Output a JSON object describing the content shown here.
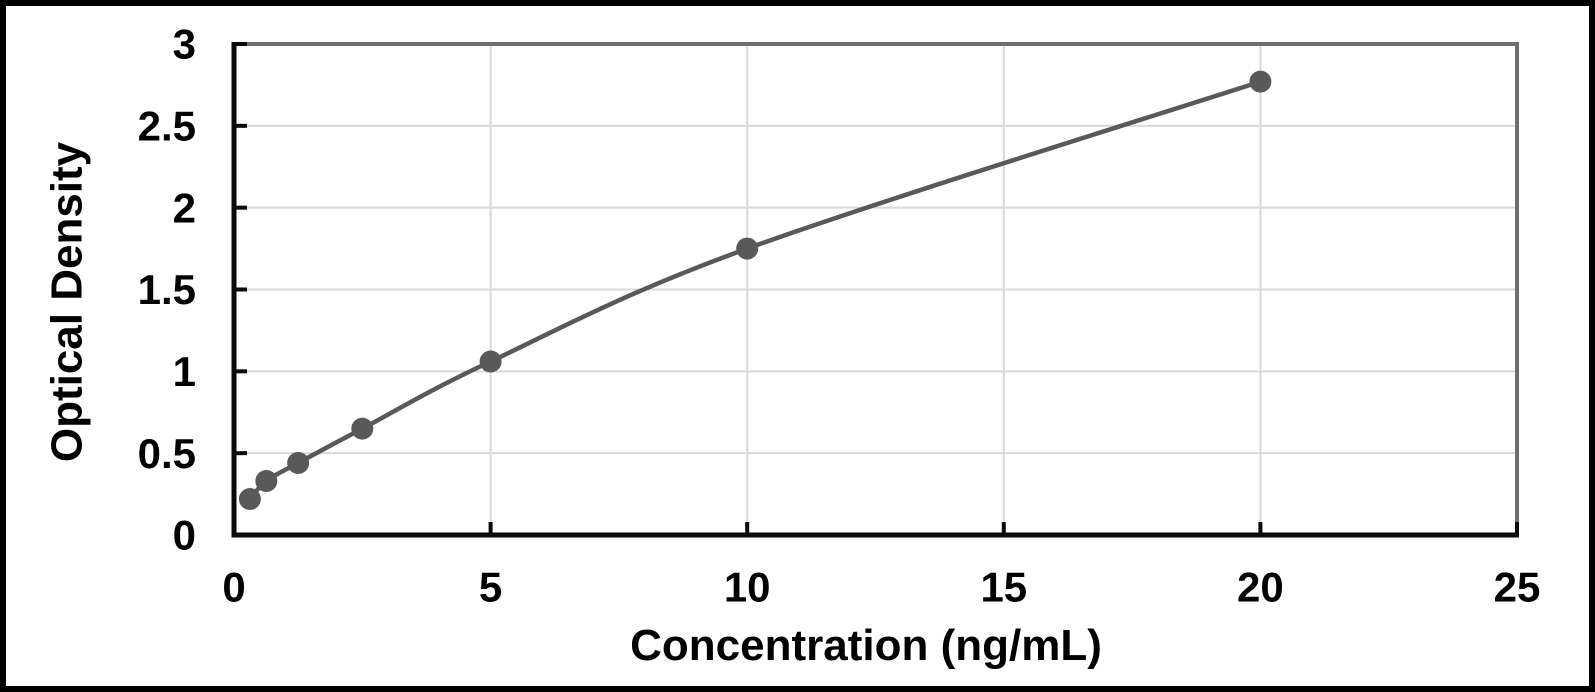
{
  "page": {
    "background": "#ffffff",
    "frame_color": "#000000"
  },
  "chart_data": {
    "type": "scatter",
    "line_style": "smooth",
    "title": "",
    "xlabel": "Concentration (ng/mL)",
    "ylabel": "Optical Density",
    "x": [
      0.31,
      0.63,
      1.25,
      2.5,
      5,
      10,
      20
    ],
    "y": [
      0.22,
      0.33,
      0.44,
      0.65,
      1.06,
      1.75,
      2.77
    ],
    "xlim": [
      0,
      25
    ],
    "ylim": [
      0,
      3
    ],
    "xticks": [
      0,
      5,
      10,
      15,
      20,
      25
    ],
    "xtick_labels": [
      "0",
      "5",
      "10",
      "15",
      "20",
      "25"
    ],
    "yticks": [
      0,
      0.5,
      1,
      1.5,
      2,
      2.5,
      3
    ],
    "ytick_labels": [
      "0",
      "0.5",
      "1",
      "1.5",
      "2",
      "2.5",
      "3"
    ],
    "grid": true,
    "legend": false,
    "legend_position": "none",
    "colors": {
      "series_line": "#595959",
      "marker": "#595959",
      "gridline": "#d9d9d9",
      "axis": "#0a0a0a",
      "plot_border": "#6e6e6e",
      "tick_label": "#000000"
    },
    "marker_radius": 11,
    "line_width": 4.5
  }
}
